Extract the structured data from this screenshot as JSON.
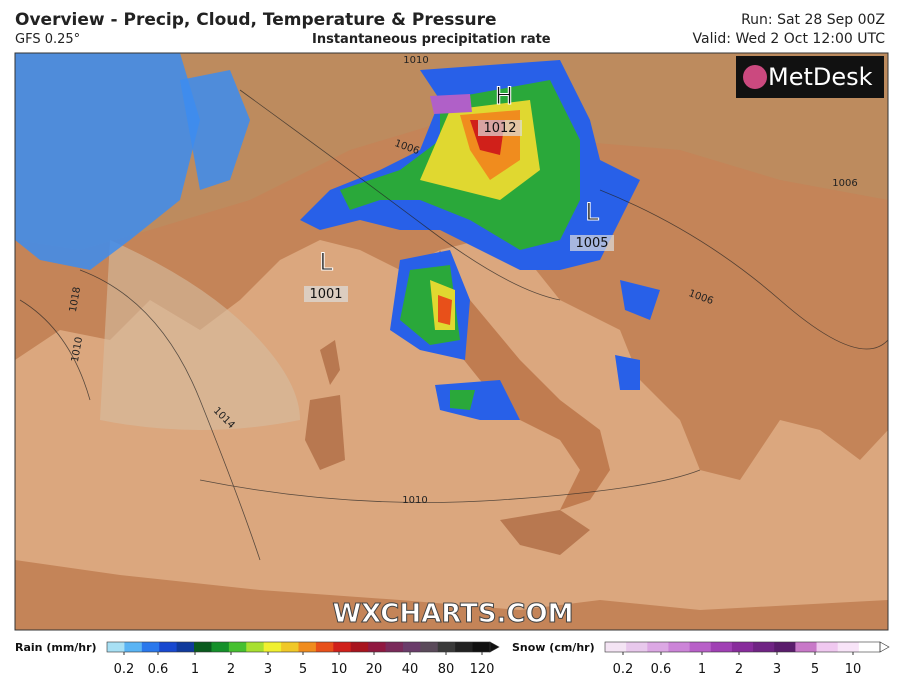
{
  "header": {
    "title": "Overview - Precip, Cloud, Temperature & Pressure",
    "model": "GFS 0.25°",
    "subtitle": "Instantaneous precipitation rate",
    "run": "Run: Sat 28 Sep 00Z",
    "valid": "Valid: Wed 2 Oct 12:00 UTC"
  },
  "logo": "MetDesk",
  "watermark": "WXCHARTS.COM",
  "pressure_centers": [
    {
      "symbol": "H",
      "value": "1012"
    },
    {
      "symbol": "L",
      "value": "1005"
    },
    {
      "symbol": "L",
      "value": "1001"
    }
  ],
  "isobar_labels": [
    "1010",
    "1006",
    "1006",
    "1018",
    "1014",
    "1010",
    "1006",
    "1010"
  ],
  "legends": [
    {
      "title": "Rain (mm/hr)",
      "ticks": [
        0.2,
        0.6,
        1,
        2,
        3,
        5,
        10,
        20,
        40,
        80,
        120
      ],
      "colors": [
        "#a8e0f4",
        "#5ab4f4",
        "#2a78ec",
        "#1848d0",
        "#103a9c",
        "#0a5a1e",
        "#14902a",
        "#46c030",
        "#a8e030",
        "#f0f030",
        "#f0c828",
        "#f08c1e",
        "#e8501a",
        "#d0201a",
        "#a8141e",
        "#901840",
        "#7a2a5a",
        "#6a3c6a",
        "#5a4a5a",
        "#3a3a3a",
        "#222222",
        "#111111"
      ]
    },
    {
      "title": "Snow (cm/hr)",
      "ticks": [
        0.2,
        0.6,
        1,
        2,
        3,
        5,
        10
      ],
      "colors": [
        "#f4e4f4",
        "#e8c8ec",
        "#dca8e4",
        "#cc84d8",
        "#b860c8",
        "#a040b4",
        "#882c9c",
        "#702484",
        "#5a1c6c",
        "#c878c8",
        "#f0c8f0",
        "#f8e4f8",
        "#ffffff"
      ]
    }
  ]
}
